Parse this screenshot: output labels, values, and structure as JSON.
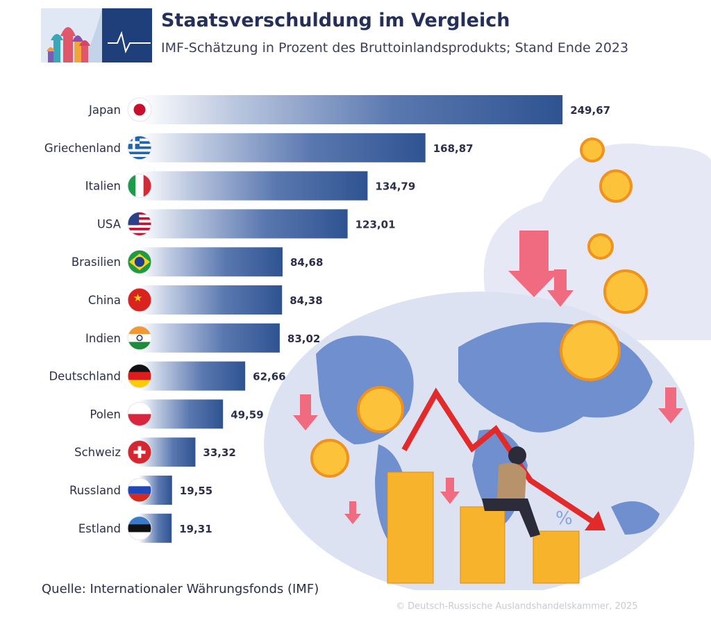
{
  "header": {
    "title": "Staatsverschuldung im Vergleich",
    "subtitle": "IMF-Schätzung in Prozent des Bruttoinlandsprodukts; Stand Ende 2023"
  },
  "chart_data": {
    "type": "bar",
    "orientation": "horizontal",
    "title": "Staatsverschuldung im Vergleich",
    "subtitle": "IMF-Schätzung in Prozent des Bruttoinlandsprodukts; Stand Ende 2023",
    "categories": [
      "Japan",
      "Griechenland",
      "Italien",
      "USA",
      "Brasilien",
      "China",
      "Indien",
      "Deutschland",
      "Polen",
      "Schweiz",
      "Russland",
      "Estland"
    ],
    "values": [
      249.67,
      168.87,
      134.79,
      123.01,
      84.68,
      84.38,
      83.02,
      62.66,
      49.59,
      33.32,
      19.55,
      19.31
    ],
    "value_labels": [
      "249,67",
      "168,87",
      "134,79",
      "123,01",
      "84,68",
      "84,38",
      "83,02",
      "62,66",
      "49,59",
      "33,32",
      "19,55",
      "19,31"
    ],
    "flags": [
      "japan-flag-icon",
      "greece-flag-icon",
      "italy-flag-icon",
      "usa-flag-icon",
      "brazil-flag-icon",
      "china-flag-icon",
      "india-flag-icon",
      "germany-flag-icon",
      "poland-flag-icon",
      "switzerland-flag-icon",
      "russia-flag-icon",
      "estonia-flag-icon"
    ],
    "xlim": [
      0,
      250
    ],
    "xlabel": "",
    "ylabel": "",
    "grid": false,
    "legend": "none",
    "bar_color": "#2f5391"
  },
  "footer": {
    "source": "Quelle: Internationaler Währungsfonds (IMF)",
    "copyright": "© Deutsch-Russische Auslandshandelskammer, 2025"
  }
}
